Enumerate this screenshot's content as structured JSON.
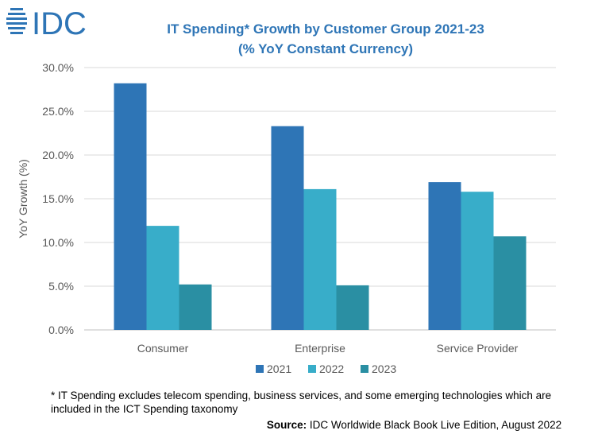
{
  "logo": {
    "text": "IDC",
    "color": "#2e75b6"
  },
  "title_line1": "IT Spending* Growth by Customer Group 2021-23",
  "title_line2": "(% YoY Constant Currency)",
  "footnote": "* IT Spending excludes telecom spending, business services, and some emerging technologies which are included in the ICT Spending taxonomy",
  "source_label": "Source:",
  "source_text": " IDC Worldwide Black Book Live Edition, August 2022",
  "chart_data": {
    "type": "bar",
    "title": "IT Spending* Growth by Customer Group 2021-23 (% YoY Constant Currency)",
    "xlabel": "",
    "ylabel": "YoY Growth (%)",
    "categories": [
      "Consumer",
      "Enterprise",
      "Service Provider"
    ],
    "series": [
      {
        "name": "2021",
        "color": "#2e75b6",
        "values": [
          28.2,
          23.3,
          16.9
        ]
      },
      {
        "name": "2022",
        "color": "#38adc9",
        "values": [
          11.9,
          16.1,
          15.8
        ]
      },
      {
        "name": "2023",
        "color": "#2a8fa3",
        "values": [
          5.2,
          5.1,
          10.7
        ]
      }
    ],
    "ylim": [
      0,
      30
    ],
    "yticks": [
      0,
      5,
      10,
      15,
      20,
      25,
      30
    ],
    "ytick_labels": [
      "0.0%",
      "5.0%",
      "10.0%",
      "15.0%",
      "20.0%",
      "25.0%",
      "30.0%"
    ],
    "grid": true,
    "legend": "bottom-center"
  }
}
